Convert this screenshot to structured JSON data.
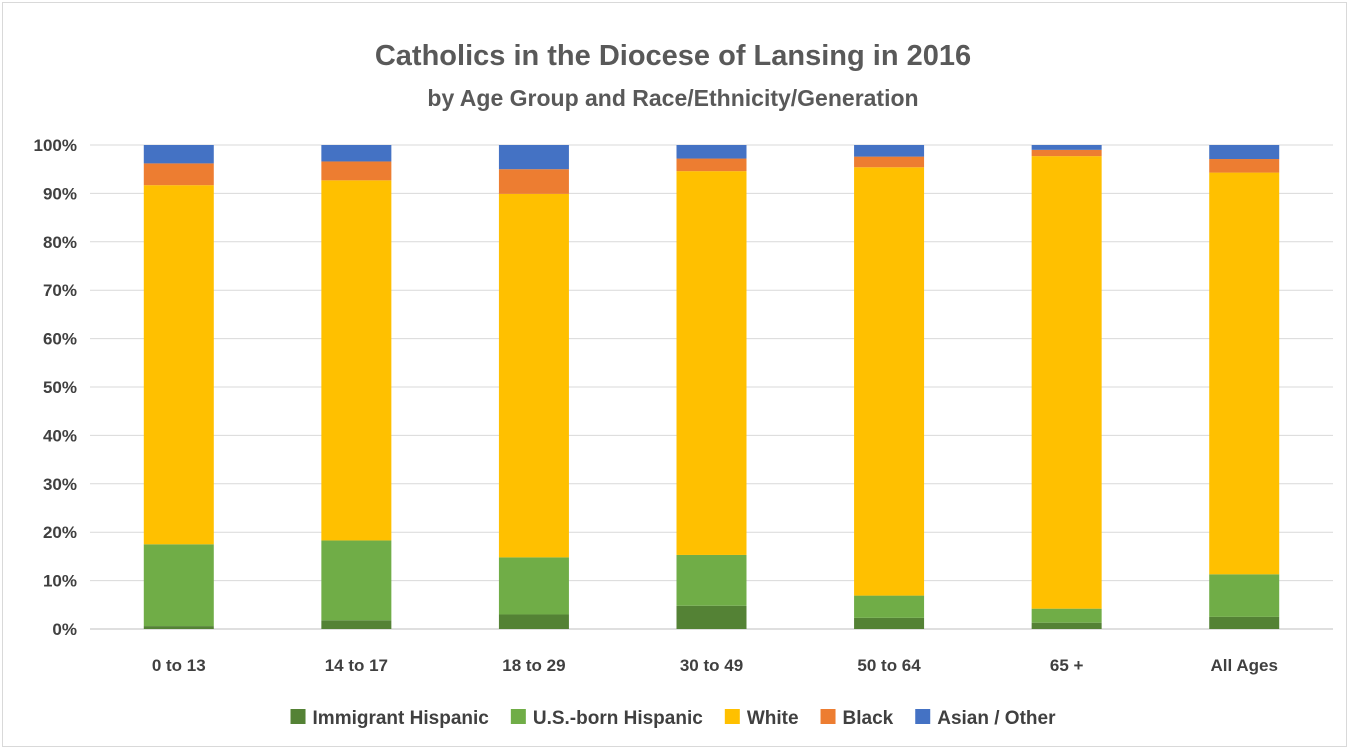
{
  "chart_data": {
    "type": "bar",
    "stacked": true,
    "title": "Catholics in the Diocese of Lansing in 2016",
    "subtitle": "by Age Group and Race/Ethnicity/Generation",
    "xlabel": "",
    "ylabel": "",
    "ylim": [
      0,
      100
    ],
    "y_tick_labels": [
      "0%",
      "10%",
      "20%",
      "30%",
      "40%",
      "50%",
      "60%",
      "70%",
      "80%",
      "90%",
      "100%"
    ],
    "categories": [
      "0 to 13",
      "14 to 17",
      "18 to 29",
      "30 to 49",
      "50 to 64",
      "65 +",
      "All Ages"
    ],
    "series": [
      {
        "name": "Immigrant Hispanic",
        "color": "#548235",
        "values": [
          0.6,
          1.8,
          3.0,
          4.8,
          2.3,
          1.3,
          2.5
        ]
      },
      {
        "name": "U.S.-born Hispanic",
        "color": "#70AD47",
        "values": [
          16.9,
          16.5,
          11.8,
          10.5,
          4.6,
          2.9,
          8.8
        ]
      },
      {
        "name": "White",
        "color": "#FFC000",
        "values": [
          74.2,
          74.4,
          75.1,
          79.3,
          88.5,
          93.5,
          83.0
        ]
      },
      {
        "name": "Black",
        "color": "#ED7D31",
        "values": [
          4.5,
          3.9,
          5.1,
          2.6,
          2.2,
          1.3,
          2.8
        ]
      },
      {
        "name": "Asian / Other",
        "color": "#4472C4",
        "values": [
          3.8,
          3.4,
          5.0,
          2.8,
          2.4,
          1.0,
          2.9
        ]
      }
    ],
    "grid": true,
    "legend_position": "bottom"
  }
}
